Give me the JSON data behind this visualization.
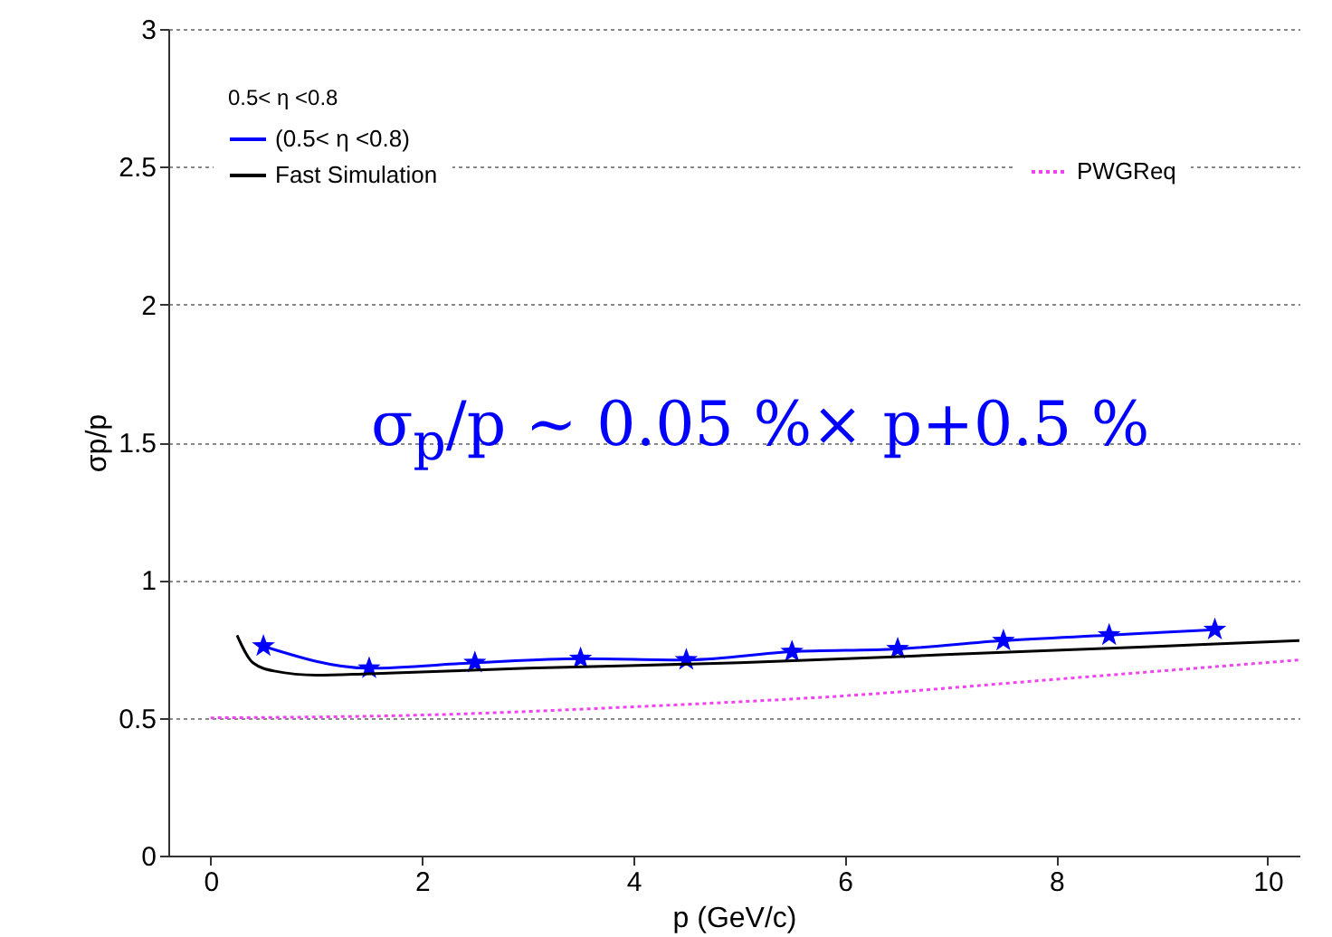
{
  "chart_data": {
    "type": "line",
    "xlabel": "p (GeV/c)",
    "ylabel": "σp/p",
    "xlim": [
      -0.4,
      10.3
    ],
    "xticks": [
      0,
      2,
      4,
      6,
      8,
      10
    ],
    "ylim": [
      0,
      3
    ],
    "yticks": [
      0,
      0.5,
      1,
      1.5,
      2,
      2.5,
      3
    ],
    "grid": "y",
    "legend": "top left",
    "legend_title": "0.5< η <0.8",
    "annotations": [
      "σ$_{p}$/p ∼ 0.05 %× p+0.5 %"
    ],
    "series": [
      {
        "name": "(0.5< η <0.8)",
        "color": "#0000ff",
        "marker": "star",
        "x": [
          0.5,
          1.5,
          2.5,
          3.5,
          4.5,
          5.5,
          6.5,
          7.5,
          8.5,
          9.5
        ],
        "values": [
          0.76,
          0.68,
          0.7,
          0.715,
          0.71,
          0.74,
          0.75,
          0.78,
          0.8,
          0.82
        ]
      },
      {
        "name": "Fast Simulation",
        "color": "#000000",
        "x": [
          0.25,
          0.4,
          0.6,
          1,
          1.5,
          3,
          5,
          7,
          9,
          10.3
        ],
        "values": [
          0.8,
          0.7,
          0.67,
          0.655,
          0.66,
          0.68,
          0.7,
          0.73,
          0.76,
          0.78
        ]
      },
      {
        "name": "PWGReq",
        "color": "#ee44ee",
        "line_style": "dotted",
        "x": [
          0,
          2,
          4,
          6,
          8,
          10.3
        ],
        "values": [
          0.5,
          0.51,
          0.54,
          0.58,
          0.64,
          0.71
        ]
      }
    ]
  }
}
